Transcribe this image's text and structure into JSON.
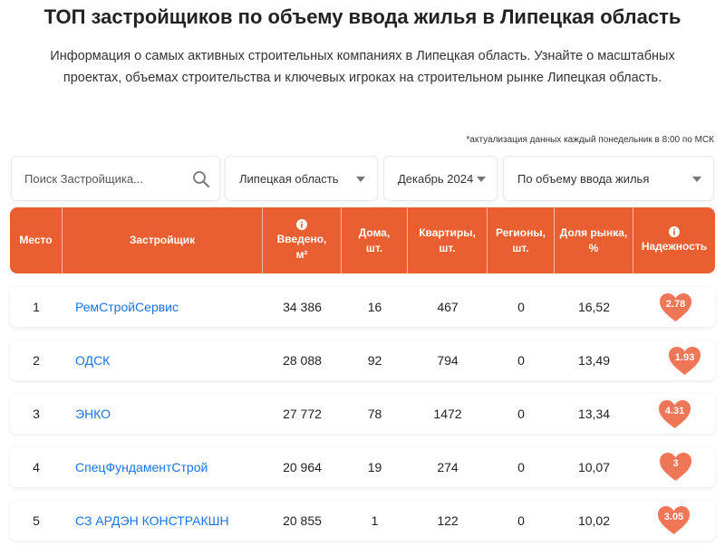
{
  "title": "ТОП застройщиков по объему ввода жилья в Липецкая область",
  "subtitle_line1": "Информация о самых активных строительных компаниях в Липецкая область. Узнайте о масштабных",
  "subtitle_line2": "проектах, объемах строительства и ключевых игроках на строительном рынке Липецкая область.",
  "update_note": "*актуализация данных каждый понедельник в 8:00 по МСК",
  "filters": {
    "search_placeholder": "Поиск Застройщика...",
    "region": "Липецкая область",
    "date": "Декабрь 2024",
    "sort": "По объему ввода жилья"
  },
  "columns": {
    "place": "Место",
    "developer": "Застройщик",
    "commissioned_1": "Введено,",
    "commissioned_2": "м²",
    "houses_1": "Дома,",
    "houses_2": "шт.",
    "apartments_1": "Квартиры,",
    "apartments_2": "шт.",
    "regions_1": "Регионы,",
    "regions_2": "шт.",
    "share_1": "Доля рынка,",
    "share_2": "%",
    "reliability": "Надежность"
  },
  "colors": {
    "accent": "#ea5f31",
    "heart": "#ef7757",
    "link": "#1a73e8"
  },
  "rows": [
    {
      "place": "1",
      "name": "РемСтройСервис",
      "area": "34 386",
      "houses": "16",
      "apartments": "467",
      "regions": "0",
      "share": "16,52",
      "rating": "2.78"
    },
    {
      "place": "2",
      "name": "ОДСК",
      "area": "28 088",
      "houses": "92",
      "apartments": "794",
      "regions": "0",
      "share": "13,49",
      "rating": "1.93"
    },
    {
      "place": "3",
      "name": "ЭНКО",
      "area": "27 772",
      "houses": "78",
      "apartments": "1472",
      "regions": "0",
      "share": "13,34",
      "rating": "4.31"
    },
    {
      "place": "4",
      "name": "СпецФундаментСтрой",
      "area": "20 964",
      "houses": "19",
      "apartments": "274",
      "regions": "0",
      "share": "10,07",
      "rating": "3"
    },
    {
      "place": "5",
      "name": "СЗ АРДЭН КОНСТРАКШН",
      "area": "20 855",
      "houses": "1",
      "apartments": "122",
      "regions": "0",
      "share": "10,02",
      "rating": "3.05"
    }
  ]
}
